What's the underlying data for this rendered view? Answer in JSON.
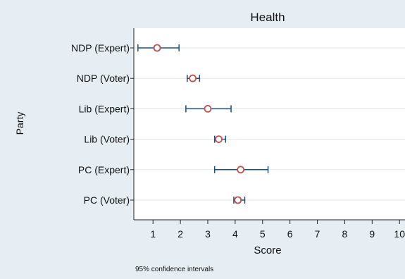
{
  "chart_data": {
    "type": "scatter",
    "title": "Health",
    "xlabel": "Score",
    "ylabel": "Party",
    "xlim": [
      0.3,
      10.2
    ],
    "xticks": [
      1,
      2,
      3,
      4,
      5,
      6,
      7,
      8,
      9,
      10
    ],
    "grid": true,
    "note": "95% confidence intervals",
    "categories": [
      "NDP (Expert)",
      "NDP (Voter)",
      "Lib (Expert)",
      "Lib (Voter)",
      "PC (Expert)",
      "PC (Voter)"
    ],
    "points": [
      {
        "label": "NDP (Expert)",
        "estimate": 1.15,
        "ci_low": 0.45,
        "ci_high": 1.95
      },
      {
        "label": "NDP (Voter)",
        "estimate": 2.45,
        "ci_low": 2.25,
        "ci_high": 2.7
      },
      {
        "label": "Lib (Expert)",
        "estimate": 3.0,
        "ci_low": 2.2,
        "ci_high": 3.85
      },
      {
        "label": "Lib (Voter)",
        "estimate": 3.4,
        "ci_low": 3.25,
        "ci_high": 3.65
      },
      {
        "label": "PC (Expert)",
        "estimate": 4.2,
        "ci_low": 3.25,
        "ci_high": 5.2
      },
      {
        "label": "PC (Voter)",
        "estimate": 4.1,
        "ci_low": 3.95,
        "ci_high": 4.35
      }
    ],
    "colors": {
      "marker": "#c0504d",
      "ci": "#1f4e79",
      "grid": "#dde5ea",
      "plot_bg": "#ffffff",
      "bg": "#e6eef3"
    }
  }
}
